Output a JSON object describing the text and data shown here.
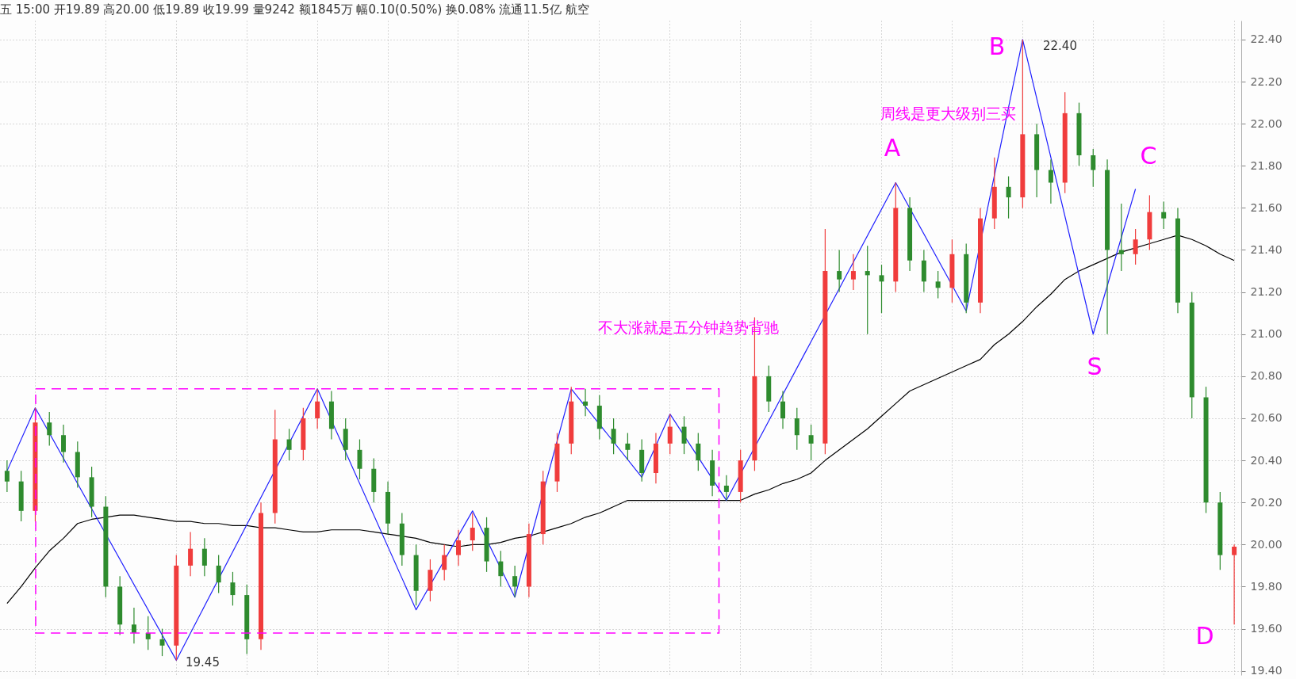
{
  "chart_data": {
    "type": "candlestick",
    "title": "五 15:00 开19.89 高20.00 低19.89 收19.99 量9242 额1845万 幅0.10(0.50%) 换0.08% 流通11.5亿 航空",
    "categories": [
      null,
      null,
      null,
      null,
      null,
      null,
      null,
      null,
      null,
      null,
      null,
      null,
      null,
      null,
      null,
      null,
      null,
      null,
      null,
      null,
      null,
      null,
      null,
      null,
      null,
      null,
      null,
      null,
      null,
      null,
      null,
      null,
      null,
      null,
      null,
      null,
      null,
      null,
      null,
      null,
      null,
      null,
      null,
      null,
      null,
      null,
      null,
      null,
      null,
      null,
      null,
      null,
      null,
      null,
      null,
      null,
      null,
      null,
      null,
      null,
      null,
      null,
      null,
      null,
      null,
      null,
      null,
      null,
      null,
      null,
      null,
      null,
      null,
      null,
      null,
      null,
      null,
      null,
      null,
      null,
      null,
      null,
      null,
      null,
      null,
      null,
      null,
      null
    ],
    "ohlc": [
      [
        20.35,
        20.4,
        20.25,
        20.3
      ],
      [
        20.3,
        20.35,
        20.11,
        20.16
      ],
      [
        20.16,
        20.65,
        20.11,
        20.58
      ],
      [
        20.58,
        20.63,
        20.47,
        20.52
      ],
      [
        20.52,
        20.57,
        20.39,
        20.44
      ],
      [
        20.44,
        20.49,
        20.27,
        20.32
      ],
      [
        20.32,
        20.37,
        20.13,
        20.18
      ],
      [
        20.18,
        20.23,
        19.75,
        19.8
      ],
      [
        19.8,
        19.85,
        19.57,
        19.62
      ],
      [
        19.62,
        19.7,
        19.53,
        19.58
      ],
      [
        19.58,
        19.66,
        19.5,
        19.55
      ],
      [
        19.55,
        19.6,
        19.47,
        19.52
      ],
      [
        19.52,
        19.95,
        19.45,
        19.9
      ],
      [
        19.9,
        20.06,
        19.85,
        19.98
      ],
      [
        19.98,
        20.03,
        19.85,
        19.9
      ],
      [
        19.9,
        19.95,
        19.77,
        19.82
      ],
      [
        19.82,
        19.87,
        19.71,
        19.76
      ],
      [
        19.76,
        19.81,
        19.48,
        19.55
      ],
      [
        19.55,
        20.2,
        19.5,
        20.15
      ],
      [
        20.15,
        20.64,
        20.1,
        20.5
      ],
      [
        20.5,
        20.55,
        20.4,
        20.45
      ],
      [
        20.45,
        20.65,
        20.4,
        20.6
      ],
      [
        20.6,
        20.74,
        20.55,
        20.68
      ],
      [
        20.68,
        20.73,
        20.5,
        20.55
      ],
      [
        20.55,
        20.6,
        20.4,
        20.45
      ],
      [
        20.45,
        20.5,
        20.31,
        20.36
      ],
      [
        20.36,
        20.41,
        20.2,
        20.25
      ],
      [
        20.25,
        20.3,
        20.05,
        20.1
      ],
      [
        20.1,
        20.15,
        19.9,
        19.95
      ],
      [
        19.95,
        20.0,
        19.71,
        19.78
      ],
      [
        19.78,
        19.93,
        19.73,
        19.88
      ],
      [
        19.88,
        20.0,
        19.83,
        19.95
      ],
      [
        19.95,
        20.07,
        19.9,
        20.02
      ],
      [
        20.02,
        20.15,
        19.97,
        20.08
      ],
      [
        20.08,
        20.13,
        19.87,
        19.92
      ],
      [
        19.92,
        19.97,
        19.8,
        19.85
      ],
      [
        19.85,
        19.9,
        19.75,
        19.8
      ],
      [
        19.8,
        20.1,
        19.75,
        20.05
      ],
      [
        20.05,
        20.35,
        20.0,
        20.3
      ],
      [
        20.3,
        20.53,
        20.25,
        20.48
      ],
      [
        20.48,
        20.75,
        20.43,
        20.68
      ],
      [
        20.68,
        20.74,
        20.61,
        20.66
      ],
      [
        20.66,
        20.71,
        20.5,
        20.55
      ],
      [
        20.55,
        20.6,
        20.43,
        20.48
      ],
      [
        20.48,
        20.53,
        20.4,
        20.45
      ],
      [
        20.45,
        20.5,
        20.3,
        20.34
      ],
      [
        20.34,
        20.53,
        20.29,
        20.48
      ],
      [
        20.48,
        20.62,
        20.43,
        20.56
      ],
      [
        20.56,
        20.61,
        20.43,
        20.48
      ],
      [
        20.48,
        20.53,
        20.35,
        20.4
      ],
      [
        20.4,
        20.45,
        20.23,
        20.28
      ],
      [
        20.28,
        20.33,
        20.21,
        20.25
      ],
      [
        20.25,
        20.45,
        20.2,
        20.4
      ],
      [
        20.4,
        21.08,
        20.35,
        20.8
      ],
      [
        20.8,
        20.85,
        20.63,
        20.68
      ],
      [
        20.68,
        20.73,
        20.55,
        20.6
      ],
      [
        20.6,
        20.65,
        20.45,
        20.52
      ],
      [
        20.52,
        20.57,
        20.4,
        20.48
      ],
      [
        20.48,
        21.5,
        20.43,
        21.3
      ],
      [
        21.3,
        21.4,
        21.2,
        21.26
      ],
      [
        21.26,
        21.38,
        21.21,
        21.3
      ],
      [
        21.3,
        21.42,
        21.0,
        21.28
      ],
      [
        21.28,
        21.33,
        21.1,
        21.25
      ],
      [
        21.25,
        21.72,
        21.2,
        21.6
      ],
      [
        21.6,
        21.65,
        21.3,
        21.35
      ],
      [
        21.35,
        21.4,
        21.2,
        21.25
      ],
      [
        21.25,
        21.3,
        21.17,
        21.22
      ],
      [
        21.22,
        21.45,
        21.15,
        21.38
      ],
      [
        21.38,
        21.43,
        21.1,
        21.15
      ],
      [
        21.15,
        21.6,
        21.1,
        21.55
      ],
      [
        21.55,
        21.84,
        21.5,
        21.7
      ],
      [
        21.7,
        21.75,
        21.55,
        21.65
      ],
      [
        21.65,
        22.4,
        21.6,
        21.95
      ],
      [
        21.95,
        22.0,
        21.65,
        21.78
      ],
      [
        21.78,
        21.83,
        21.62,
        21.72
      ],
      [
        21.72,
        22.15,
        21.67,
        22.05
      ],
      [
        22.05,
        22.1,
        21.8,
        21.85
      ],
      [
        21.85,
        21.88,
        21.7,
        21.78
      ],
      [
        21.78,
        21.83,
        21.0,
        21.4
      ],
      [
        21.4,
        21.62,
        21.3,
        21.38
      ],
      [
        21.38,
        21.5,
        21.33,
        21.45
      ],
      [
        21.45,
        21.66,
        21.4,
        21.58
      ],
      [
        21.58,
        21.63,
        21.5,
        21.55
      ],
      [
        21.55,
        21.6,
        21.1,
        21.15
      ],
      [
        21.15,
        21.2,
        20.6,
        20.7
      ],
      [
        20.7,
        20.75,
        20.15,
        20.2
      ],
      [
        20.2,
        20.25,
        19.88,
        19.95
      ],
      [
        19.95,
        20.0,
        19.62,
        19.99
      ]
    ],
    "colors": [
      "#2e8b2e",
      "#2e8b2e",
      "#f03c3c",
      "#2e8b2e",
      "#2e8b2e",
      "#2e8b2e",
      "#2e8b2e",
      "#2e8b2e",
      "#2e8b2e",
      "#2e8b2e",
      "#2e8b2e",
      "#2e8b2e",
      "#f03c3c",
      "#f03c3c",
      "#2e8b2e",
      "#2e8b2e",
      "#2e8b2e",
      "#2e8b2e",
      "#f03c3c",
      "#f03c3c",
      "#2e8b2e",
      "#f03c3c",
      "#f03c3c",
      "#2e8b2e",
      "#2e8b2e",
      "#2e8b2e",
      "#2e8b2e",
      "#2e8b2e",
      "#2e8b2e",
      "#2e8b2e",
      "#f03c3c",
      "#f03c3c",
      "#f03c3c",
      "#f03c3c",
      "#2e8b2e",
      "#2e8b2e",
      "#2e8b2e",
      "#f03c3c",
      "#f03c3c",
      "#f03c3c",
      "#f03c3c",
      "#2e8b2e",
      "#2e8b2e",
      "#2e8b2e",
      "#2e8b2e",
      "#2e8b2e",
      "#f03c3c",
      "#f03c3c",
      "#2e8b2e",
      "#2e8b2e",
      "#2e8b2e",
      "#2e8b2e",
      "#f03c3c",
      "#f03c3c",
      "#2e8b2e",
      "#2e8b2e",
      "#2e8b2e",
      "#2e8b2e",
      "#f03c3c",
      "#2e8b2e",
      "#f03c3c",
      "#2e8b2e",
      "#2e8b2e",
      "#f03c3c",
      "#2e8b2e",
      "#2e8b2e",
      "#2e8b2e",
      "#f03c3c",
      "#2e8b2e",
      "#f03c3c",
      "#f03c3c",
      "#2e8b2e",
      "#f03c3c",
      "#2e8b2e",
      "#2e8b2e",
      "#f03c3c",
      "#2e8b2e",
      "#2e8b2e",
      "#2e8b2e",
      "#2e8b2e",
      "#f03c3c",
      "#f03c3c",
      "#2e8b2e",
      "#2e8b2e",
      "#2e8b2e",
      "#2e8b2e",
      "#2e8b2e",
      "#f03c3c"
    ],
    "series": [
      {
        "type": "line",
        "color": "#000000",
        "line_style": "solid",
        "values": [
          19.72,
          19.8,
          19.89,
          19.97,
          20.03,
          20.1,
          20.12,
          20.13,
          20.14,
          20.14,
          20.13,
          20.12,
          20.11,
          20.11,
          20.1,
          20.1,
          20.09,
          20.09,
          20.08,
          20.08,
          20.07,
          20.06,
          20.06,
          20.07,
          20.07,
          20.07,
          20.06,
          20.05,
          20.04,
          20.03,
          20.01,
          20.0,
          19.99,
          20.0,
          20.0,
          20.01,
          20.03,
          20.04,
          20.06,
          20.08,
          20.1,
          20.13,
          20.15,
          20.18,
          20.21,
          20.21,
          20.21,
          20.21,
          20.21,
          20.21,
          20.21,
          20.21,
          20.21,
          20.24,
          20.26,
          20.29,
          20.31,
          20.34,
          20.4,
          20.45,
          20.5,
          20.55,
          20.61,
          20.67,
          20.73,
          20.76,
          20.79,
          20.82,
          20.85,
          20.88,
          20.95,
          21.0,
          21.06,
          21.13,
          21.19,
          21.26,
          21.3,
          21.33,
          21.36,
          21.39,
          21.41,
          21.43,
          21.45,
          21.47,
          21.45,
          21.42,
          21.38,
          21.35
        ]
      },
      {
        "type": "line",
        "color": "#1f1fff",
        "line_style": "solid",
        "values": [
          20.35,
          null,
          20.65,
          null,
          null,
          null,
          null,
          null,
          null,
          null,
          null,
          null,
          19.45,
          null,
          null,
          null,
          null,
          null,
          null,
          null,
          null,
          null,
          20.74,
          null,
          null,
          null,
          null,
          null,
          null,
          19.69,
          null,
          null,
          null,
          20.16,
          null,
          null,
          19.75,
          null,
          null,
          null,
          20.74,
          null,
          null,
          null,
          null,
          20.32,
          null,
          20.62,
          null,
          null,
          null,
          20.21,
          null,
          null,
          null,
          null,
          null,
          null,
          null,
          null,
          null,
          null,
          null,
          21.72,
          null,
          null,
          null,
          null,
          21.11,
          null,
          null,
          null,
          22.4,
          null,
          null,
          null,
          null,
          21.0,
          null,
          null,
          21.69,
          null,
          null,
          null,
          null,
          null,
          null,
          null
        ]
      }
    ],
    "ylim": [
      19.38,
      22.49
    ],
    "yticks": [
      {
        "value": 19.4,
        "label": "19.40"
      },
      {
        "value": 19.6,
        "label": "19.60"
      },
      {
        "value": 19.8,
        "label": "19.80"
      },
      {
        "value": 20.0,
        "label": "20.00"
      },
      {
        "value": 20.2,
        "label": "20.20"
      },
      {
        "value": 20.4,
        "label": "20.40"
      },
      {
        "value": 20.6,
        "label": "20.60"
      },
      {
        "value": 20.8,
        "label": "20.80"
      },
      {
        "value": 21.0,
        "label": "21.00"
      },
      {
        "value": 21.2,
        "label": "21.20"
      },
      {
        "value": 21.4,
        "label": "21.40"
      },
      {
        "value": 21.6,
        "label": "21.60"
      },
      {
        "value": 21.8,
        "label": "21.80"
      },
      {
        "value": 22.0,
        "label": "22.00"
      },
      {
        "value": 22.2,
        "label": "22.20"
      },
      {
        "value": 22.4,
        "label": "22.40"
      }
    ],
    "tick_labels": "y",
    "grid": true,
    "annotations": [
      "A",
      "B",
      "C",
      "S",
      "D",
      "22.40",
      "19.45",
      "周线是更大级别三买",
      "不大涨就是五分钟趋势背驰"
    ]
  }
}
